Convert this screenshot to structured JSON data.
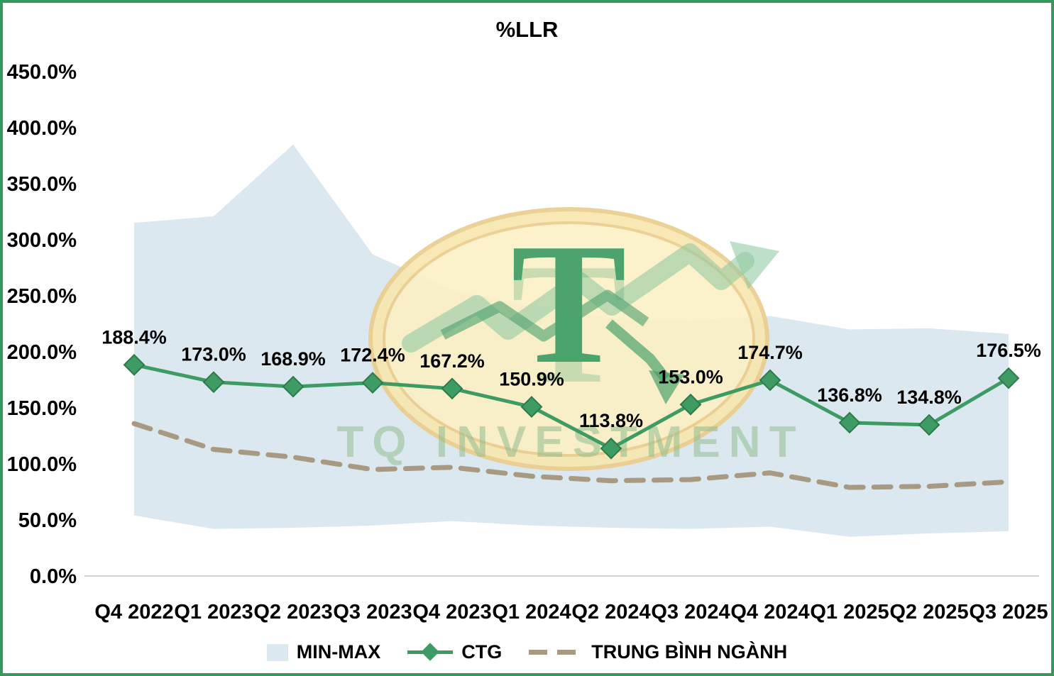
{
  "page": {
    "border_color": "#35985c",
    "background": "#ffffff"
  },
  "watermark": {
    "letter": "T",
    "text": "TQ INVESTMENT"
  },
  "chart_data": {
    "type": "line",
    "title": "%LLR",
    "categories": [
      "Q4 2022",
      "Q1 2023",
      "Q2 2023",
      "Q3 2023",
      "Q4 2023",
      "Q1 2024",
      "Q2 2024",
      "Q3 2024",
      "Q4 2024",
      "Q1 2025",
      "Q2 2025",
      "Q3 2025"
    ],
    "series": [
      {
        "name": "CTG",
        "type": "line-with-diamond-markers",
        "values": [
          188.4,
          173.0,
          168.9,
          172.4,
          167.2,
          150.9,
          113.8,
          153.0,
          174.7,
          136.8,
          134.8,
          176.5
        ],
        "data_labels": [
          "188.4%",
          "173.0%",
          "168.9%",
          "172.4%",
          "167.2%",
          "150.9%",
          "113.8%",
          "153.0%",
          "174.7%",
          "136.8%",
          "134.8%",
          "176.5%"
        ]
      },
      {
        "name": "TRUNG BÌNH NGÀNH",
        "type": "dashed-line",
        "values": [
          136,
          113,
          106,
          95,
          97,
          89,
          85,
          86,
          92,
          79,
          80,
          84
        ]
      }
    ],
    "band": {
      "name": "MIN-MAX",
      "type": "area-band",
      "max": [
        315,
        321,
        385,
        287,
        255,
        240,
        230,
        228,
        232,
        220,
        221,
        216
      ],
      "min": [
        54,
        42,
        43,
        45,
        49,
        45,
        43,
        42,
        44,
        35,
        38,
        40
      ]
    },
    "ylim": [
      0,
      450
    ],
    "ytick_step": 50,
    "ytick_labels": [
      "0.0%",
      "50.0%",
      "100.0%",
      "150.0%",
      "200.0%",
      "250.0%",
      "300.0%",
      "350.0%",
      "400.0%",
      "450.0%"
    ],
    "grid": false,
    "legend_position": "bottom",
    "colors": {
      "ctg": "#3d9b63",
      "ctg_dark": "#2e7a4c",
      "industry": "#a89a82",
      "band": "#dce8f0",
      "axis": "#d0d0d0",
      "text": "#000000"
    }
  }
}
